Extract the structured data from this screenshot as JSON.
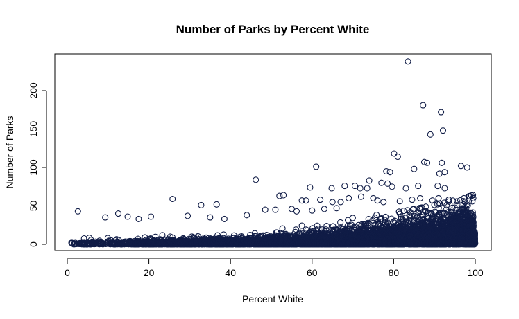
{
  "chart_data": {
    "type": "scatter",
    "title": "Number of Parks by Percent White",
    "xlabel": "Percent White",
    "ylabel": "Number of Parks",
    "xlim": [
      0,
      100
    ],
    "ylim": [
      0,
      240
    ],
    "xticks": [
      "0",
      "20",
      "40",
      "60",
      "80",
      "100"
    ],
    "yticks": [
      "0",
      "50",
      "100",
      "150",
      "200"
    ],
    "marker": "open-circle",
    "point_color": "#101c46",
    "grid": false,
    "series": [
      {
        "points": [
          [
            83.5,
            238
          ],
          [
            87.2,
            181
          ],
          [
            91.6,
            172
          ],
          [
            92.1,
            148
          ],
          [
            89.0,
            143
          ],
          [
            80.1,
            118
          ],
          [
            81.0,
            114
          ],
          [
            88.2,
            106
          ],
          [
            91.8,
            106
          ],
          [
            87.5,
            107
          ],
          [
            61.0,
            101
          ],
          [
            96.5,
            102
          ],
          [
            98.0,
            100
          ],
          [
            78.2,
            95
          ],
          [
            79.1,
            94
          ],
          [
            85.0,
            98
          ],
          [
            92.5,
            94
          ],
          [
            91.2,
            92
          ],
          [
            46.2,
            84
          ],
          [
            74.0,
            83
          ],
          [
            77.0,
            80
          ],
          [
            78.5,
            79
          ],
          [
            79.6,
            75
          ],
          [
            83.0,
            73
          ],
          [
            86.0,
            76
          ],
          [
            90.8,
            76
          ],
          [
            92.5,
            73
          ],
          [
            59.5,
            74
          ],
          [
            64.8,
            73
          ],
          [
            68.0,
            76
          ],
          [
            70.5,
            76
          ],
          [
            71.8,
            73
          ],
          [
            73.5,
            73
          ],
          [
            52.0,
            63
          ],
          [
            53.0,
            64
          ],
          [
            57.5,
            57
          ],
          [
            58.5,
            57
          ],
          [
            62.0,
            58
          ],
          [
            65.0,
            55
          ],
          [
            67.0,
            55
          ],
          [
            69.0,
            60
          ],
          [
            72.0,
            62
          ],
          [
            75.0,
            60
          ],
          [
            76.0,
            57
          ],
          [
            77.5,
            55
          ],
          [
            81.5,
            56
          ],
          [
            84.5,
            58
          ],
          [
            86.5,
            60
          ],
          [
            89.5,
            57
          ],
          [
            91.0,
            60
          ],
          [
            93.5,
            58
          ],
          [
            95.5,
            56
          ],
          [
            97.5,
            55
          ],
          [
            25.8,
            59
          ],
          [
            36.6,
            52
          ],
          [
            32.8,
            51
          ],
          [
            2.6,
            43
          ],
          [
            12.5,
            40
          ],
          [
            14.8,
            36
          ],
          [
            9.3,
            35
          ],
          [
            17.5,
            33
          ],
          [
            20.5,
            36
          ],
          [
            29.5,
            37
          ],
          [
            35.0,
            35
          ],
          [
            38.5,
            33
          ],
          [
            44.0,
            38
          ],
          [
            48.5,
            45
          ],
          [
            51.0,
            45
          ],
          [
            55.0,
            46
          ],
          [
            56.2,
            43
          ],
          [
            60.0,
            44
          ],
          [
            63.0,
            46
          ],
          [
            66.0,
            47
          ],
          [
            98.5,
            40
          ]
        ]
      }
    ]
  }
}
